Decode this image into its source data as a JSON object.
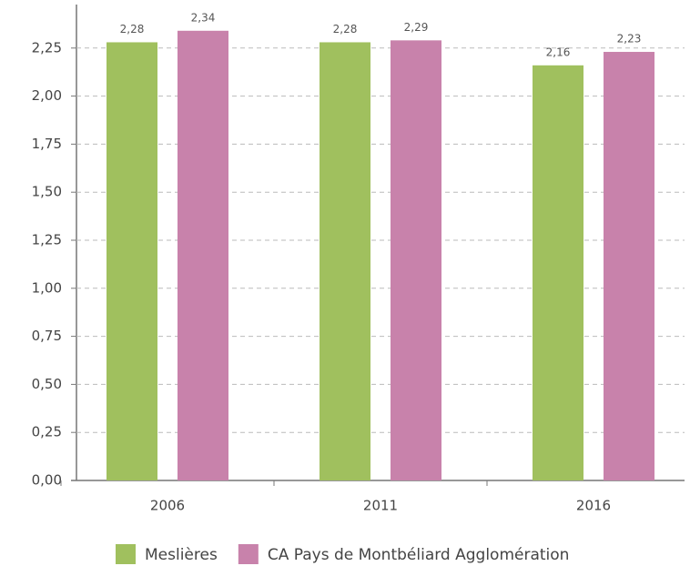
{
  "chart_data": {
    "type": "bar",
    "categories": [
      "2006",
      "2011",
      "2016"
    ],
    "series": [
      {
        "name": "Meslières",
        "color": "#a0c05e",
        "values": [
          2.28,
          2.28,
          2.16
        ],
        "value_labels": [
          "2,28",
          "2,28",
          "2,16"
        ]
      },
      {
        "name": "CA Pays de Montbéliard Agglomération",
        "color": "#c882ab",
        "values": [
          2.34,
          2.29,
          2.23
        ],
        "value_labels": [
          "2,34",
          "2,29",
          "2,23"
        ]
      }
    ],
    "ylim": [
      0,
      2.5
    ],
    "yticks": [
      {
        "value": 0,
        "label": "0,00"
      },
      {
        "value": 0.25,
        "label": "0,25"
      },
      {
        "value": 0.5,
        "label": "0,50"
      },
      {
        "value": 0.75,
        "label": "0,75"
      },
      {
        "value": 1,
        "label": "1,00"
      },
      {
        "value": 1.25,
        "label": "1,25"
      },
      {
        "value": 1.5,
        "label": "1,50"
      },
      {
        "value": 1.75,
        "label": "1,75"
      },
      {
        "value": 2,
        "label": "2,00"
      },
      {
        "value": 2.25,
        "label": "2,25"
      }
    ],
    "grid": true,
    "legend": "bottom"
  }
}
